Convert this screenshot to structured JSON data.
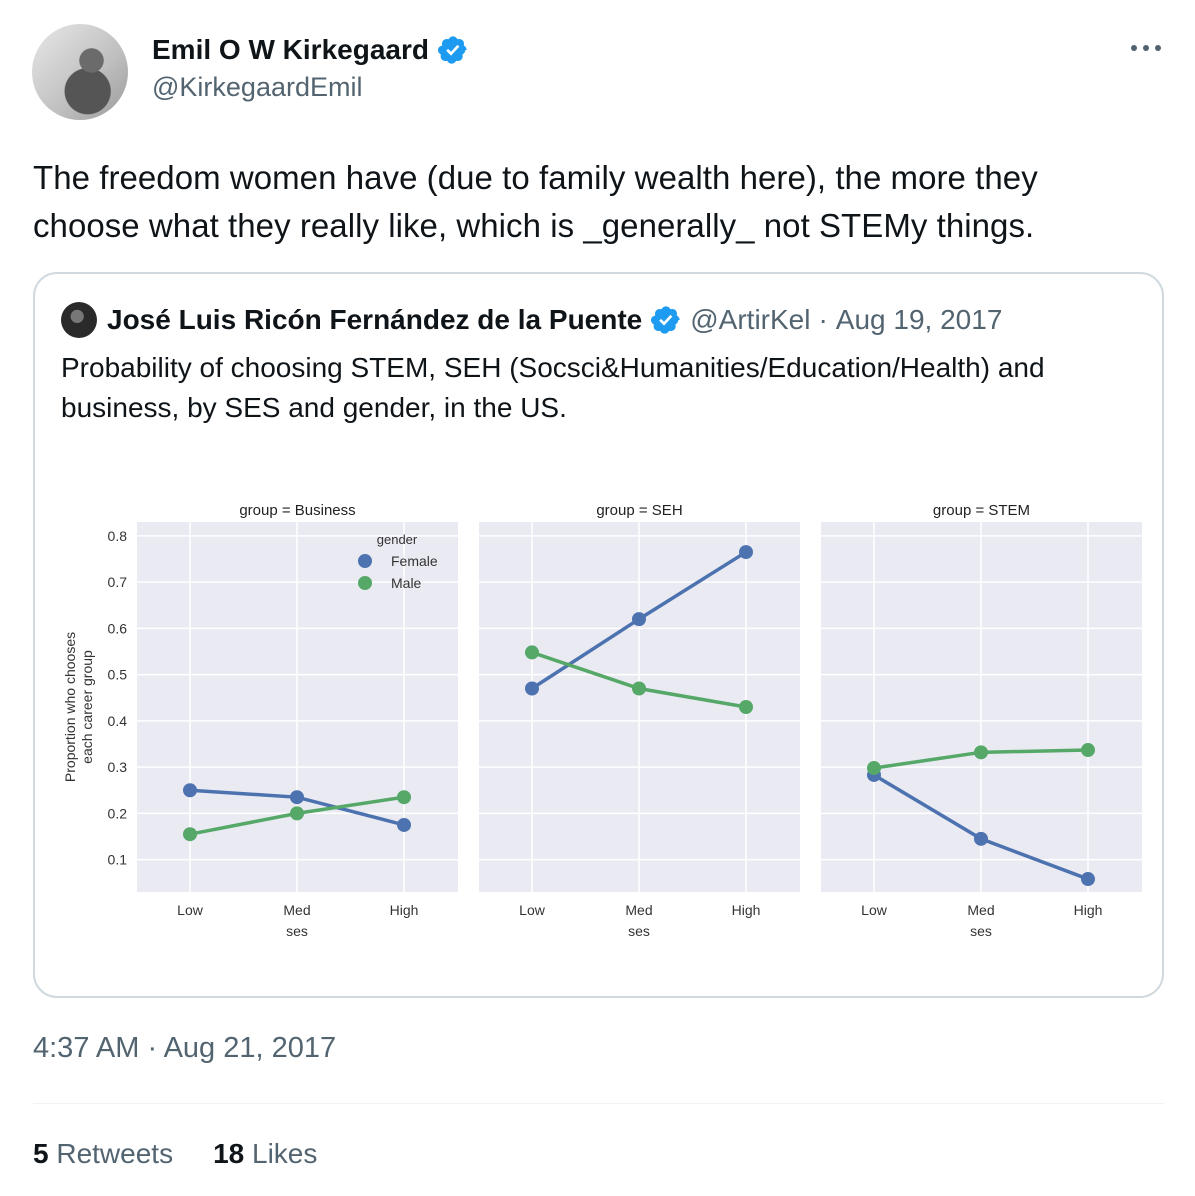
{
  "author": {
    "name": "Emil O W Kirkegaard",
    "handle": "@KirkegaardEmil"
  },
  "tweet": {
    "text": "The freedom women have (due to family wealth here), the more they choose what they really like, which is _generally_ not STEMy things."
  },
  "quoted": {
    "name": "José Luis Ricón Fernández de la Puente",
    "handle": "@ArtirKel",
    "separator": "·",
    "date": "Aug 19, 2017",
    "text": "Probability of choosing STEM, SEH (Socsci&Humanities/Education/Health) and business, by SES and gender, in the US."
  },
  "footer": {
    "timestamp": "4:37 AM · Aug 21, 2017",
    "retweets_count": "5",
    "retweets_label": "Retweets",
    "likes_count": "18",
    "likes_label": "Likes"
  },
  "colors": {
    "verified": "#1d9bf0",
    "female": "#4c72b0",
    "male": "#55a868",
    "panel_bg": "#eaeaf2"
  },
  "chart_data": {
    "type": "line",
    "ylabel": "Proportion who chooses\neach career group",
    "xlabel": "ses",
    "categories": [
      "Low",
      "Med",
      "High"
    ],
    "y_ticks": [
      "0.1",
      "0.2",
      "0.3",
      "0.4",
      "0.5",
      "0.6",
      "0.7",
      "0.8"
    ],
    "ylim": [
      0.03,
      0.83
    ],
    "legend": {
      "title": "gender",
      "position": "top-right of first panel",
      "entries": [
        "Female",
        "Male"
      ]
    },
    "panels": [
      {
        "title": "group = Business",
        "series": [
          {
            "name": "Female",
            "values": [
              0.25,
              0.235,
              0.175
            ]
          },
          {
            "name": "Male",
            "values": [
              0.155,
              0.2,
              0.235
            ]
          }
        ]
      },
      {
        "title": "group = SEH",
        "series": [
          {
            "name": "Female",
            "values": [
              0.47,
              0.62,
              0.765
            ]
          },
          {
            "name": "Male",
            "values": [
              0.548,
              0.47,
              0.43
            ]
          }
        ]
      },
      {
        "title": "group = STEM",
        "series": [
          {
            "name": "Female",
            "values": [
              0.283,
              0.145,
              0.058
            ]
          },
          {
            "name": "Male",
            "values": [
              0.298,
              0.332,
              0.337
            ]
          }
        ]
      }
    ]
  }
}
